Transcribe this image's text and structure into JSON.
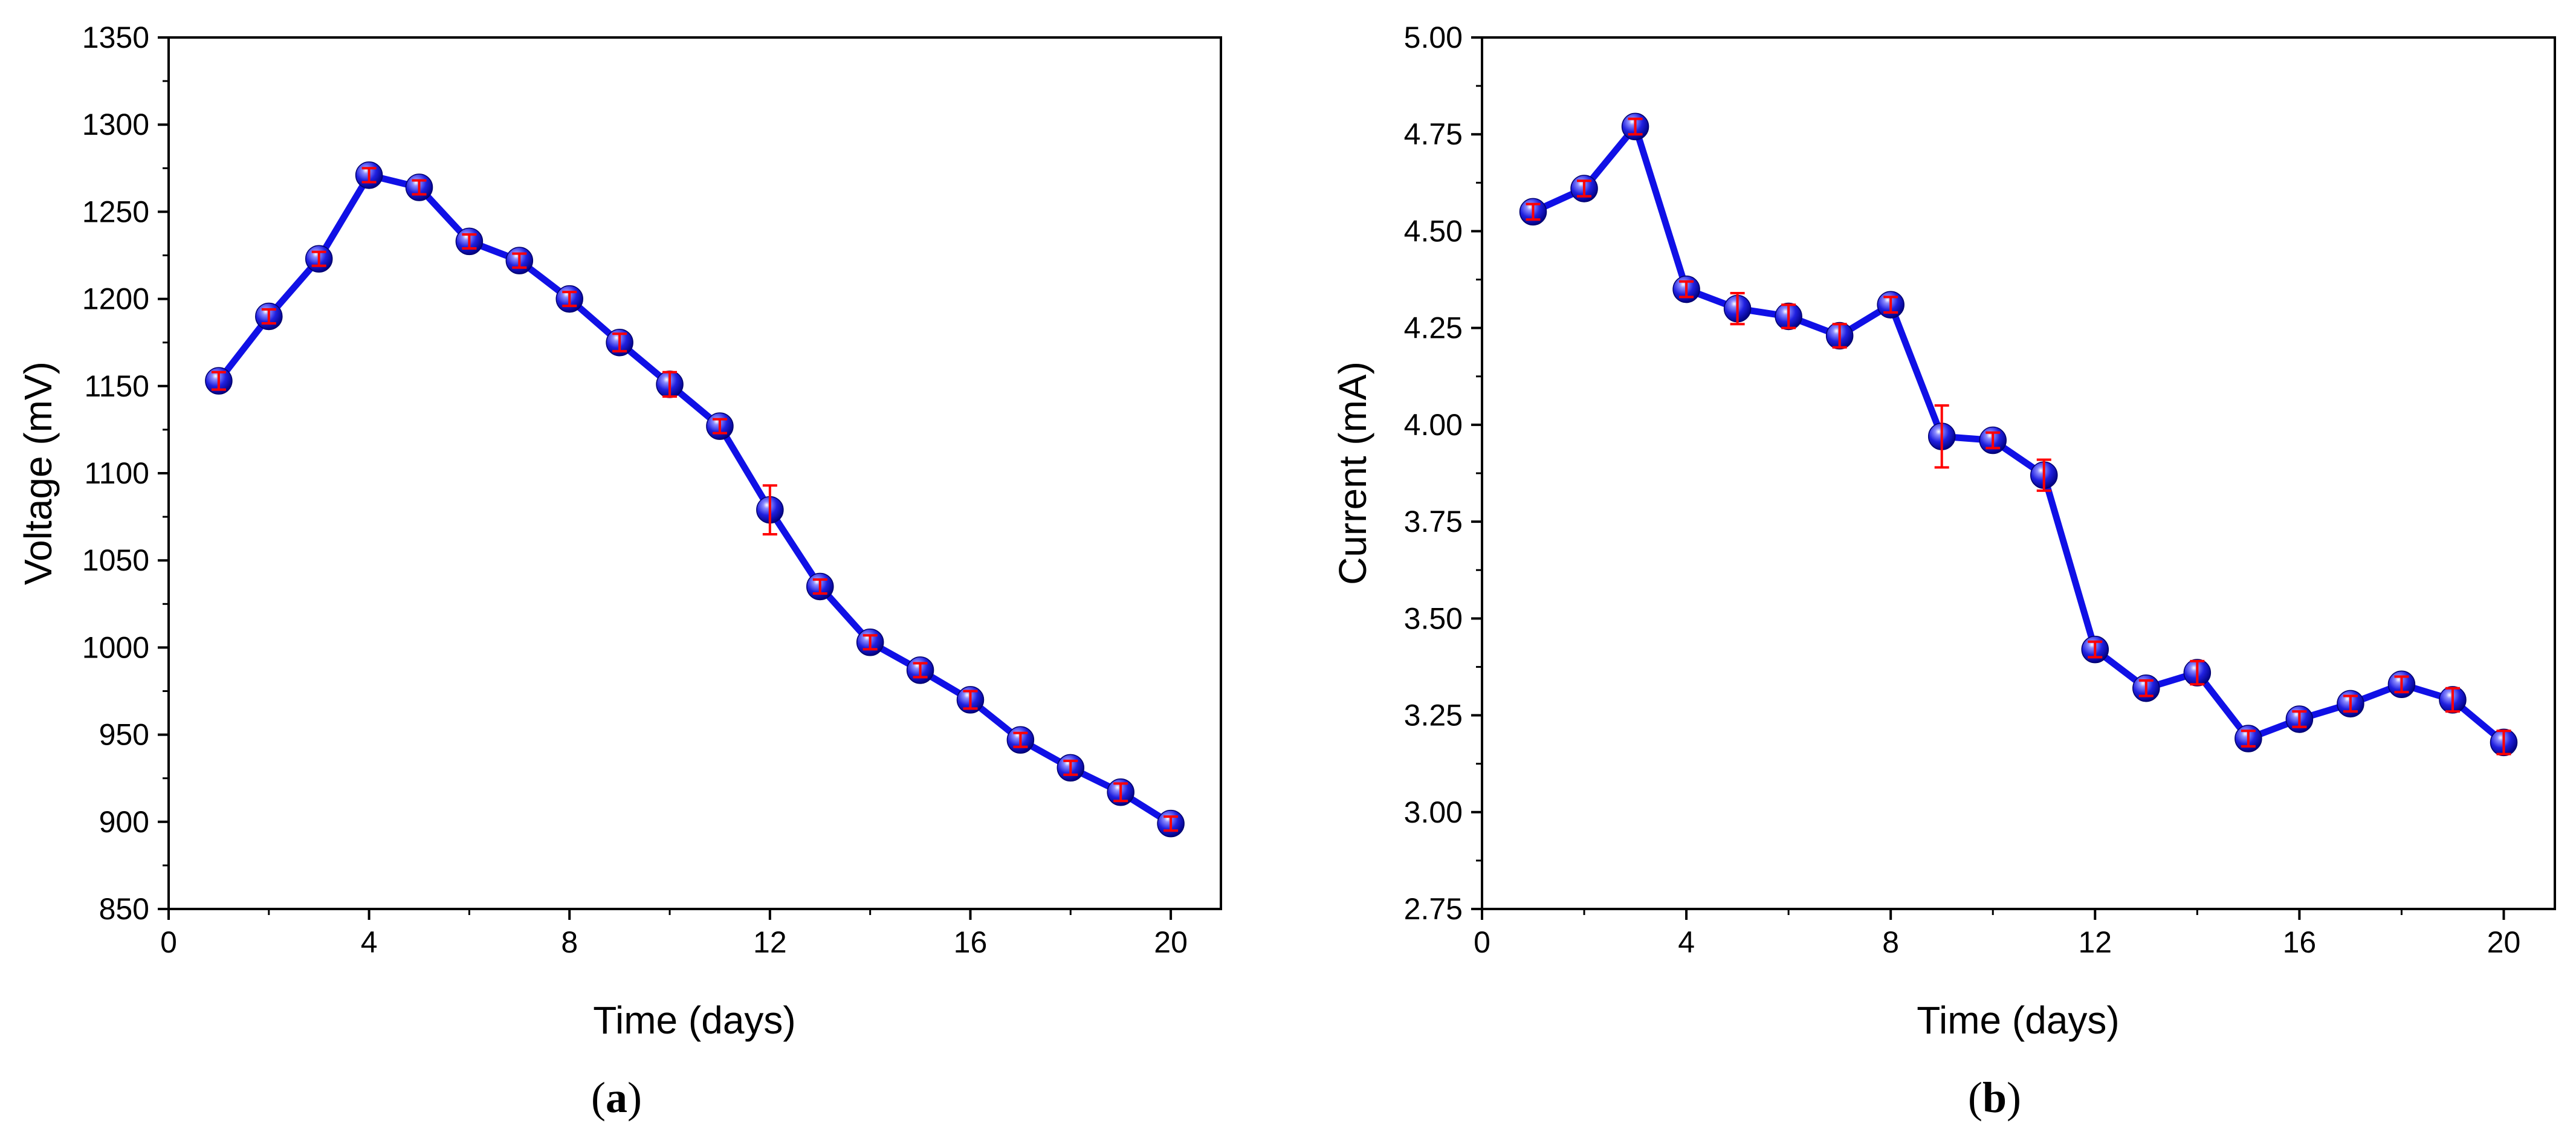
{
  "chart_data": [
    {
      "type": "line",
      "panel_label": "a",
      "xlabel": "Time (days)",
      "ylabel": "Voltage (mV)",
      "xlim": [
        0,
        21
      ],
      "ylim": [
        850,
        1350
      ],
      "xticks": [
        0,
        4,
        8,
        12,
        16,
        20
      ],
      "yticks": [
        850,
        900,
        950,
        1000,
        1050,
        1100,
        1150,
        1200,
        1250,
        1300,
        1350
      ],
      "line_color": "#1010e6",
      "marker_color": "#1a1ad6",
      "error_color": "#ff0000",
      "series": [
        {
          "name": "Voltage",
          "x": [
            1,
            2,
            3,
            4,
            5,
            6,
            7,
            8,
            9,
            10,
            11,
            12,
            13,
            14,
            15,
            16,
            17,
            18,
            19,
            20
          ],
          "y": [
            1153,
            1190,
            1223,
            1271,
            1264,
            1233,
            1222,
            1200,
            1175,
            1151,
            1127,
            1079,
            1035,
            1003,
            987,
            970,
            947,
            931,
            917,
            899
          ],
          "err": [
            5,
            4,
            4,
            4,
            4,
            4,
            4,
            4,
            5,
            7,
            4,
            14,
            4,
            4,
            4,
            5,
            4,
            4,
            5,
            4
          ]
        }
      ]
    },
    {
      "type": "line",
      "panel_label": "b",
      "xlabel": "Time (days)",
      "ylabel": "Current (mA)",
      "xlim": [
        0,
        21
      ],
      "ylim": [
        2.75,
        5.0
      ],
      "xticks": [
        0,
        4,
        8,
        12,
        16,
        20
      ],
      "yticks": [
        "2.75",
        "3.00",
        "3.25",
        "3.50",
        "3.75",
        "4.00",
        "4.25",
        "4.50",
        "4.75",
        "5.00"
      ],
      "line_color": "#1010e6",
      "marker_color": "#1a1ad6",
      "error_color": "#ff0000",
      "series": [
        {
          "name": "Current",
          "x": [
            1,
            2,
            3,
            4,
            5,
            6,
            7,
            8,
            9,
            10,
            11,
            12,
            13,
            14,
            15,
            16,
            17,
            18,
            19,
            20
          ],
          "y": [
            4.55,
            4.61,
            4.77,
            4.35,
            4.3,
            4.28,
            4.23,
            4.31,
            3.97,
            3.96,
            3.87,
            3.42,
            3.32,
            3.36,
            3.19,
            3.24,
            3.28,
            3.33,
            3.29,
            3.18
          ],
          "err": [
            0.02,
            0.02,
            0.02,
            0.02,
            0.04,
            0.03,
            0.03,
            0.02,
            0.08,
            0.02,
            0.04,
            0.02,
            0.02,
            0.03,
            0.02,
            0.02,
            0.02,
            0.02,
            0.03,
            0.03
          ]
        }
      ]
    }
  ]
}
